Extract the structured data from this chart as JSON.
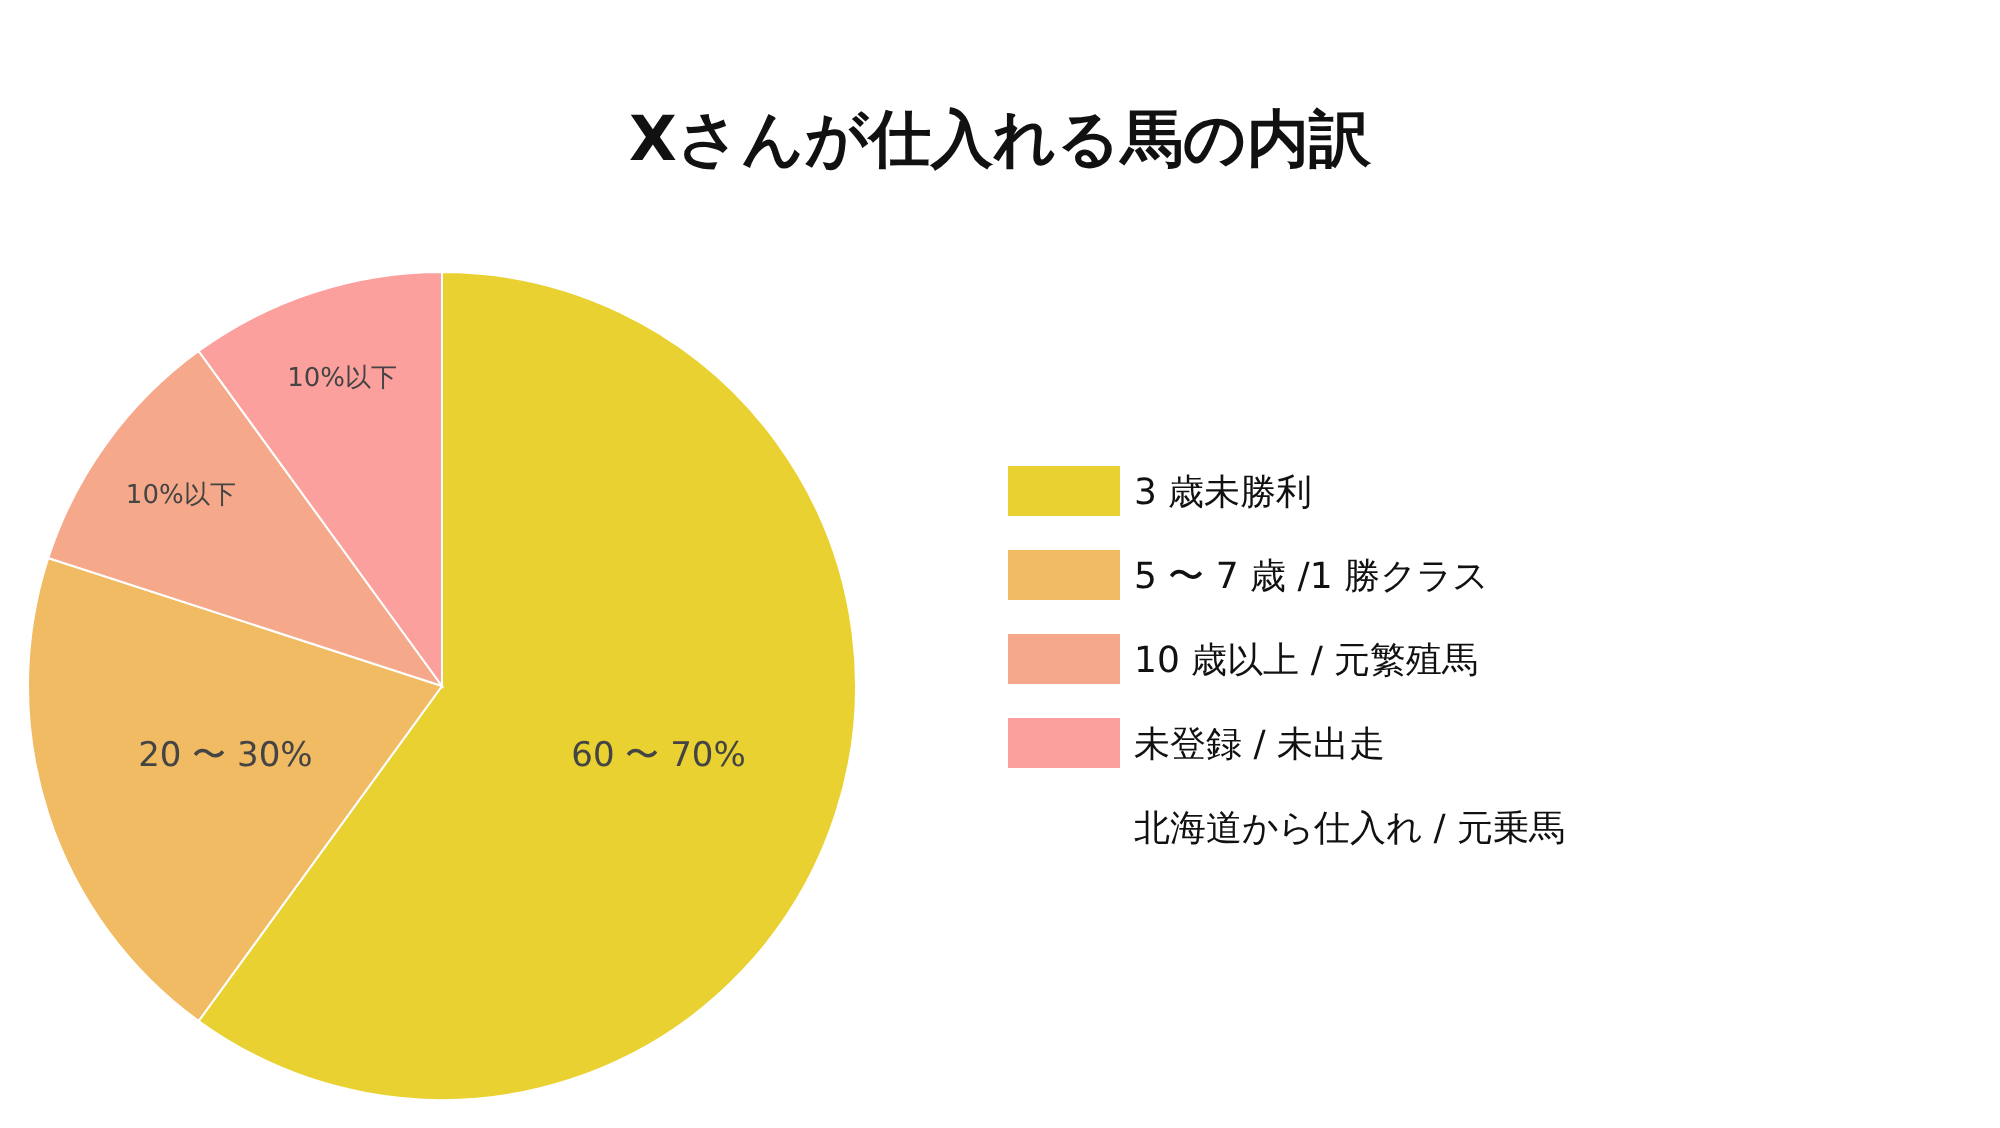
{
  "chart_data": {
    "type": "pie",
    "title": "Xさんが仕入れる馬の内訳",
    "categories": [
      "3 歳未勝利",
      "5 〜 7 歳 /1 勝クラス",
      "10 歳以上 / 元繁殖馬",
      "未登録 / 未出走"
    ],
    "annotations": [
      "北海道から仕入れ / 元乗馬"
    ],
    "values": [
      60,
      20,
      10,
      10
    ],
    "colors": [
      "#e8d130",
      "#f0bb62",
      "#f5a98a",
      "#fba09c"
    ],
    "value_labels": [
      "60 〜 70%",
      "20 〜 30%",
      "10%以下",
      "10%以下"
    ],
    "legend": "right"
  }
}
